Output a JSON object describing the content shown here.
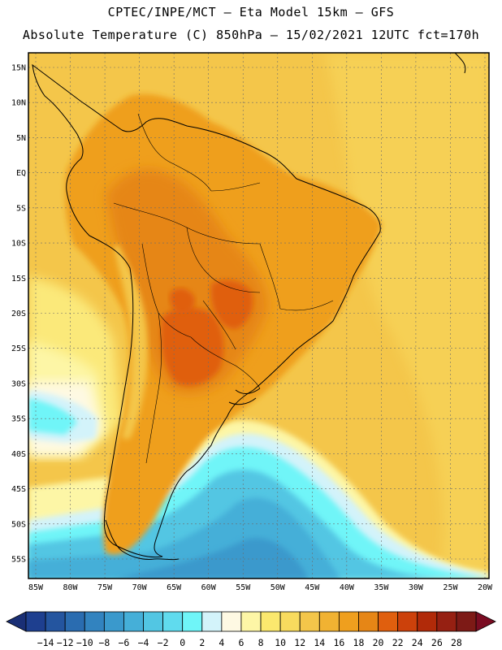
{
  "header": {
    "line1": "CPTEC/INPE/MCT –  Eta Model 15km – GFS",
    "line2": "Absolute Temperature (C) 850hPa – 15/02/2021 12UTC fct=170h"
  },
  "map": {
    "region": "South America",
    "lon_range": [
      -85,
      -20
    ],
    "lat_range": [
      -58,
      16
    ],
    "latitude_labels": [
      "15N",
      "10N",
      "5N",
      "EQ",
      "5S",
      "10S",
      "15S",
      "20S",
      "25S",
      "30S",
      "35S",
      "40S",
      "45S",
      "50S",
      "55S"
    ],
    "longitude_labels": [
      "85W",
      "80W",
      "75W",
      "70W",
      "65W",
      "60W",
      "55W",
      "50W",
      "45W",
      "40W",
      "35W",
      "30W",
      "25W",
      "20W"
    ],
    "grid": true
  },
  "colorbar": {
    "labels": [
      "-14",
      "-12",
      "-10",
      "-8",
      "-6",
      "-4",
      "-2",
      "0",
      "2",
      "4",
      "6",
      "8",
      "10",
      "12",
      "14",
      "16",
      "18",
      "20",
      "22",
      "24",
      "26",
      "28"
    ],
    "colors": [
      "#1e3f8f",
      "#24559f",
      "#2a6cb0",
      "#3283bf",
      "#3a99cc",
      "#45afd8",
      "#52c6e3",
      "#60dbee",
      "#6ff5f8",
      "#d3f3fa",
      "#fef9e3",
      "#fdf6a6",
      "#fbe86e",
      "#f8db5e",
      "#f4c64a",
      "#f1b232",
      "#ef9f1e",
      "#e68616",
      "#e05f0e",
      "#cc410b",
      "#b12a09",
      "#962012",
      "#7d1a16"
    ],
    "arrow_low_color": "#1a2f75",
    "arrow_high_color": "#7a0c22"
  }
}
